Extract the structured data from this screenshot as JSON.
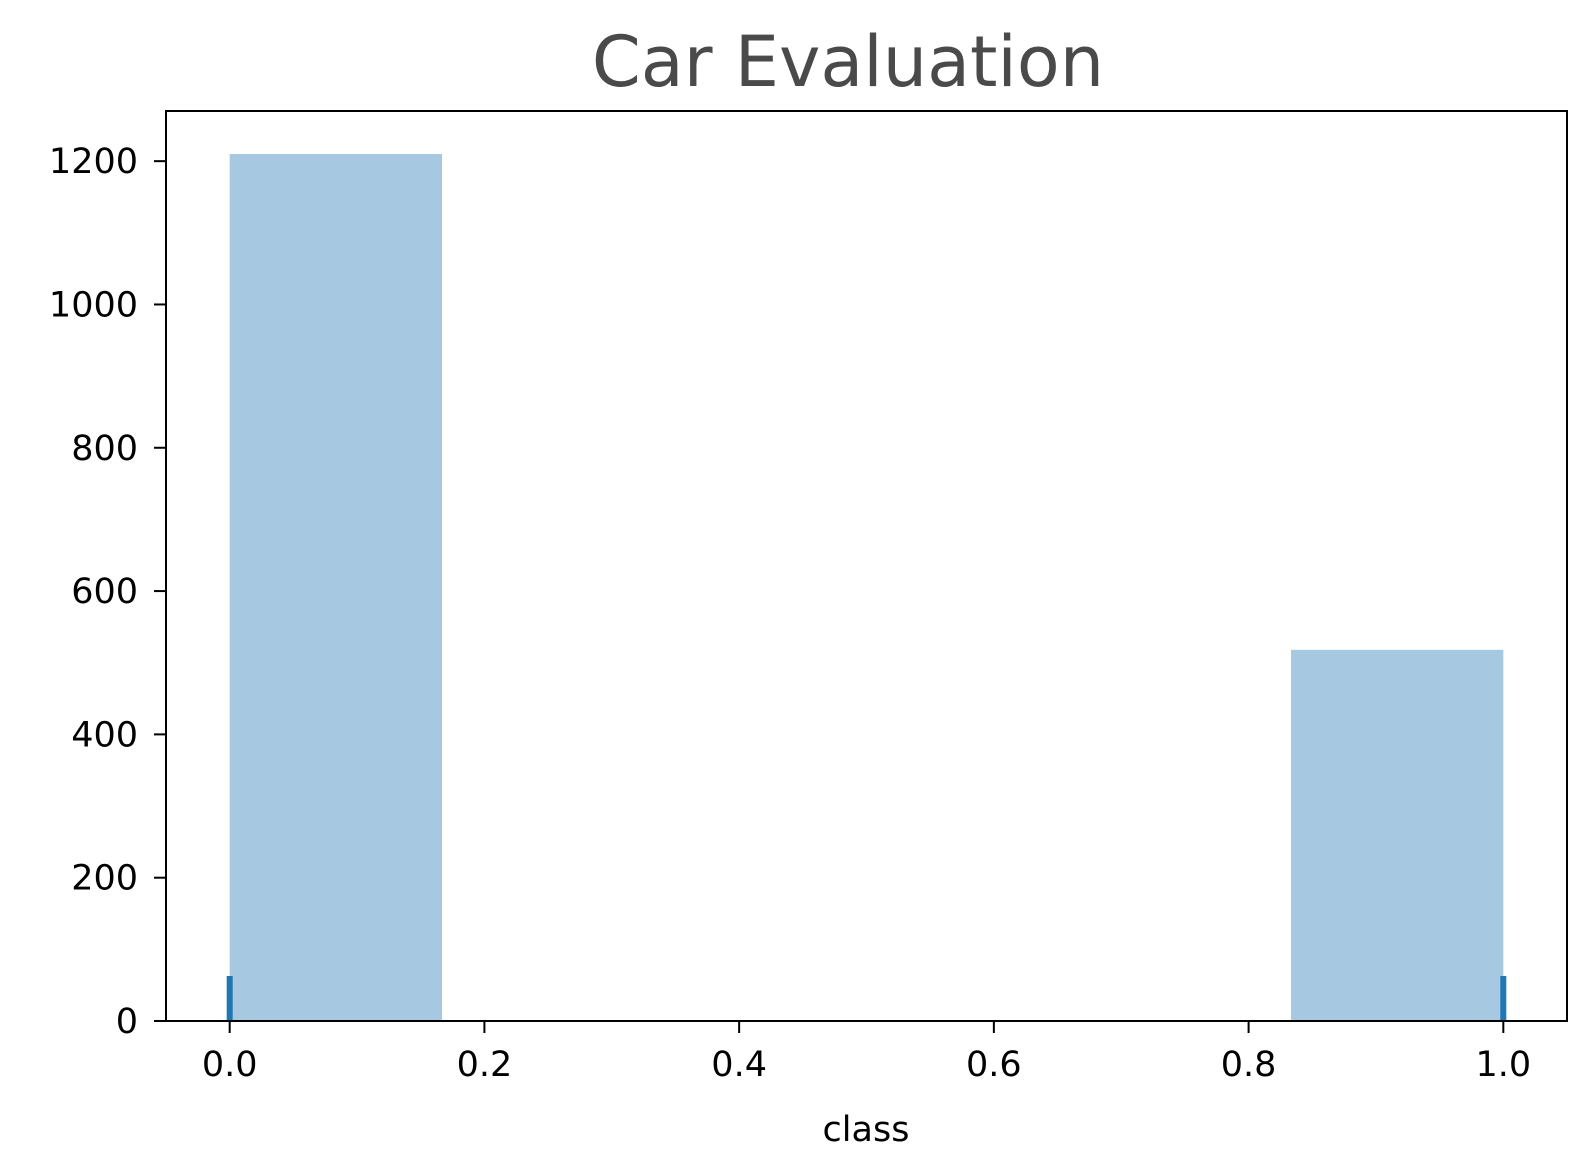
{
  "chart_data": {
    "type": "bar",
    "title": "Car Evaluation",
    "xlabel": "class",
    "ylabel": "",
    "xlim": [
      -0.05,
      1.05
    ],
    "ylim": [
      0,
      1270
    ],
    "x_ticks": [
      0.0,
      0.2,
      0.4,
      0.6,
      0.8,
      1.0
    ],
    "x_tick_labels": [
      "0.0",
      "0.2",
      "0.4",
      "0.6",
      "0.8",
      "1.0"
    ],
    "y_ticks": [
      0,
      200,
      400,
      600,
      800,
      1000,
      1200
    ],
    "y_tick_labels": [
      "0",
      "200",
      "400",
      "600",
      "800",
      "1000",
      "1200"
    ],
    "bins": [
      {
        "x0": 0.0,
        "x1": 0.1667,
        "count": 1210
      },
      {
        "x0": 0.1667,
        "x1": 0.3333,
        "count": 0
      },
      {
        "x0": 0.3333,
        "x1": 0.5,
        "count": 0
      },
      {
        "x0": 0.5,
        "x1": 0.6667,
        "count": 0
      },
      {
        "x0": 0.6667,
        "x1": 0.8333,
        "count": 0
      },
      {
        "x0": 0.8333,
        "x1": 1.0,
        "count": 518
      }
    ],
    "rug": [
      0.0,
      1.0
    ],
    "grid": false,
    "legend": "none",
    "colors": {
      "bar": "#a6c8e0",
      "rug": "#1f77b4",
      "title": "#4a4a4a"
    }
  }
}
